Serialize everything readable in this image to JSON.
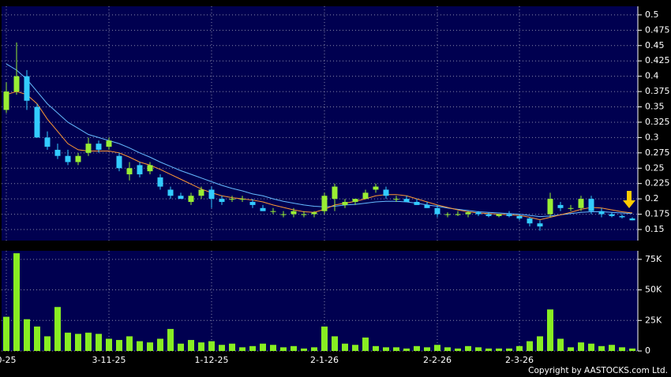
{
  "chart_data": [
    {
      "type": "candlestick",
      "categories": [
        "0-25",
        null,
        null,
        null,
        null,
        null,
        null,
        null,
        null,
        null,
        "3-11-25",
        null,
        null,
        null,
        null,
        null,
        null,
        null,
        null,
        null,
        "1-12-25",
        null,
        null,
        null,
        null,
        null,
        null,
        null,
        null,
        null,
        null,
        "2-1-26",
        null,
        null,
        null,
        null,
        null,
        null,
        null,
        null,
        null,
        null,
        "2-2-26",
        null,
        null,
        null,
        null,
        null,
        null,
        null,
        "2-3-26",
        null,
        null,
        null,
        null,
        null,
        null,
        null,
        null,
        null,
        null,
        null
      ],
      "open": [
        0.345,
        0.375,
        0.4,
        0.35,
        0.3,
        0.28,
        0.27,
        0.26,
        0.275,
        0.29,
        0.285,
        0.27,
        0.24,
        0.255,
        0.245,
        0.235,
        0.215,
        0.205,
        0.195,
        0.205,
        0.215,
        0.2,
        0.2,
        0.2,
        0.195,
        0.185,
        0.18,
        0.175,
        0.175,
        0.175,
        0.175,
        0.18,
        0.2,
        0.19,
        0.195,
        0.2,
        0.215,
        0.215,
        0.2,
        0.2,
        0.195,
        0.19,
        0.185,
        0.175,
        0.175,
        0.175,
        0.178,
        0.175,
        0.172,
        0.175,
        0.172,
        0.168,
        0.16,
        0.175,
        0.19,
        0.185,
        0.185,
        0.2,
        0.18,
        0.175,
        0.172,
        0.168
      ],
      "high": [
        0.39,
        0.455,
        0.41,
        0.355,
        0.31,
        0.29,
        0.28,
        0.275,
        0.3,
        0.295,
        0.3,
        0.275,
        0.26,
        0.26,
        0.26,
        0.24,
        0.22,
        0.21,
        0.21,
        0.22,
        0.22,
        0.205,
        0.205,
        0.205,
        0.2,
        0.19,
        0.185,
        0.18,
        0.185,
        0.18,
        0.18,
        0.21,
        0.225,
        0.2,
        0.2,
        0.215,
        0.225,
        0.22,
        0.205,
        0.205,
        0.2,
        0.195,
        0.19,
        0.178,
        0.18,
        0.18,
        0.18,
        0.178,
        0.175,
        0.18,
        0.175,
        0.17,
        0.165,
        0.21,
        0.195,
        0.19,
        0.205,
        0.205,
        0.185,
        0.178,
        0.175,
        0.17
      ],
      "low": [
        0.34,
        0.37,
        0.345,
        0.3,
        0.28,
        0.265,
        0.255,
        0.255,
        0.27,
        0.275,
        0.28,
        0.245,
        0.23,
        0.235,
        0.24,
        0.215,
        0.2,
        0.2,
        0.19,
        0.2,
        0.185,
        0.19,
        0.195,
        0.195,
        0.185,
        0.18,
        0.175,
        0.17,
        0.17,
        0.17,
        0.17,
        0.175,
        0.18,
        0.185,
        0.19,
        0.2,
        0.21,
        0.2,
        0.195,
        0.195,
        0.19,
        0.185,
        0.17,
        0.17,
        0.172,
        0.17,
        0.172,
        0.17,
        0.17,
        0.17,
        0.165,
        0.155,
        0.148,
        0.17,
        0.18,
        0.18,
        0.18,
        0.175,
        0.17,
        0.17,
        0.168,
        0.165
      ],
      "close": [
        0.375,
        0.4,
        0.36,
        0.3,
        0.285,
        0.27,
        0.26,
        0.27,
        0.29,
        0.28,
        0.295,
        0.25,
        0.25,
        0.24,
        0.255,
        0.22,
        0.205,
        0.2,
        0.205,
        0.215,
        0.2,
        0.195,
        0.2,
        0.2,
        0.19,
        0.18,
        0.18,
        0.175,
        0.18,
        0.175,
        0.178,
        0.205,
        0.22,
        0.195,
        0.2,
        0.21,
        0.22,
        0.205,
        0.2,
        0.195,
        0.19,
        0.185,
        0.175,
        0.175,
        0.175,
        0.178,
        0.175,
        0.172,
        0.175,
        0.172,
        0.168,
        0.16,
        0.155,
        0.2,
        0.185,
        0.185,
        0.2,
        0.18,
        0.175,
        0.172,
        0.17,
        0.165
      ],
      "up_color": "#99ee33",
      "down_color": "#33ccff",
      "series": [
        {
          "color": "#66bbff",
          "values": [
            0.42,
            0.41,
            0.395,
            0.375,
            0.355,
            0.34,
            0.325,
            0.315,
            0.305,
            0.3,
            0.295,
            0.29,
            0.283,
            0.275,
            0.268,
            0.26,
            0.253,
            0.246,
            0.24,
            0.234,
            0.228,
            0.222,
            0.217,
            0.213,
            0.208,
            0.205,
            0.2,
            0.196,
            0.193,
            0.19,
            0.188,
            0.187,
            0.188,
            0.19,
            0.191,
            0.193,
            0.195,
            0.196,
            0.196,
            0.195,
            0.193,
            0.19,
            0.188,
            0.185,
            0.183,
            0.181,
            0.179,
            0.178,
            0.177,
            0.176,
            0.175,
            0.173,
            0.171,
            0.172,
            0.174,
            0.176,
            0.178,
            0.179,
            0.179,
            0.178,
            0.177,
            0.176
          ]
        },
        {
          "color": "#ff9933",
          "values": [
            0.37,
            0.375,
            0.37,
            0.355,
            0.33,
            0.31,
            0.29,
            0.28,
            0.278,
            0.278,
            0.278,
            0.275,
            0.268,
            0.26,
            0.255,
            0.248,
            0.24,
            0.232,
            0.224,
            0.216,
            0.21,
            0.205,
            0.202,
            0.2,
            0.198,
            0.195,
            0.19,
            0.186,
            0.182,
            0.179,
            0.178,
            0.183,
            0.19,
            0.193,
            0.196,
            0.2,
            0.205,
            0.207,
            0.207,
            0.205,
            0.2,
            0.195,
            0.19,
            0.186,
            0.182,
            0.179,
            0.177,
            0.176,
            0.175,
            0.174,
            0.173,
            0.17,
            0.166,
            0.17,
            0.174,
            0.178,
            0.183,
            0.186,
            0.185,
            0.182,
            0.179,
            0.177
          ]
        }
      ],
      "ylim": [
        0.132,
        0.514
      ],
      "yticks": [
        0.15,
        0.175,
        0.2,
        0.225,
        0.25,
        0.275,
        0.3,
        0.325,
        0.35,
        0.375,
        0.4,
        0.425,
        0.45,
        0.475,
        0.5
      ],
      "grid": true
    },
    {
      "type": "bar",
      "values": [
        28000,
        80000,
        26000,
        20000,
        12000,
        36000,
        15000,
        14000,
        15000,
        14000,
        10000,
        9000,
        12000,
        8000,
        7000,
        10000,
        18000,
        6000,
        9000,
        7000,
        8000,
        5000,
        6000,
        3000,
        4000,
        6000,
        5000,
        3000,
        4000,
        2000,
        3000,
        20000,
        12000,
        6000,
        5000,
        11000,
        4000,
        3000,
        3000,
        2000,
        4000,
        3000,
        5000,
        3000,
        2000,
        4000,
        3000,
        2000,
        2000,
        2000,
        4000,
        8000,
        12000,
        34000,
        10000,
        3000,
        7000,
        6000,
        4000,
        5000,
        3000,
        2000
      ],
      "color": "#88ee22",
      "ylim": [
        0,
        82000
      ],
      "yticks": [
        0,
        {
          "value": 25000,
          "label": "25K"
        },
        {
          "value": 50000,
          "label": "50K"
        },
        {
          "value": 75000,
          "label": "75K"
        }
      ],
      "grid": true
    }
  ],
  "footer": "Copyright by AASTOCKS.com Ltd."
}
